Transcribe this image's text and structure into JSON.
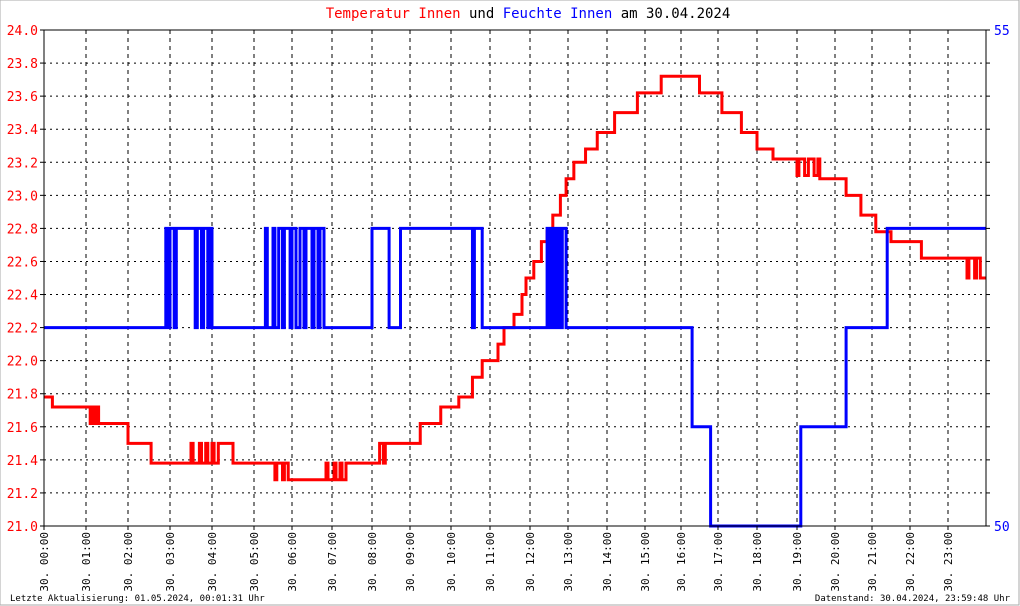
{
  "chart_data": {
    "type": "line",
    "title_parts": [
      {
        "text": "Temperatur Innen",
        "color": "#ff0000"
      },
      {
        "text": " und ",
        "color": "#000000"
      },
      {
        "text": "Feuchte Innen",
        "color": "#0000ff"
      },
      {
        "text": " am 30.04.2024",
        "color": "#000000"
      }
    ],
    "y_left": {
      "min": 21.0,
      "max": 24.0,
      "step": 0.2,
      "color": "#ff0000",
      "tick_labels": [
        "21.0",
        "21.2",
        "21.4",
        "21.6",
        "21.8",
        "22.0",
        "22.2",
        "22.4",
        "22.6",
        "22.8",
        "23.0",
        "23.2",
        "23.4",
        "23.6",
        "23.8",
        "24.0"
      ]
    },
    "y_right": {
      "min": 50,
      "max": 55,
      "color": "#0000ff",
      "tick_labels": [
        "50",
        "55"
      ]
    },
    "x": {
      "unit": "hour",
      "min": 0,
      "max": 24,
      "tick_labels": [
        "30. 00:00",
        "30. 01:00",
        "30. 02:00",
        "30. 03:00",
        "30. 04:00",
        "30. 05:00",
        "30. 06:00",
        "30. 07:00",
        "30. 08:00",
        "30. 09:00",
        "30. 10:00",
        "30. 11:00",
        "30. 12:00",
        "30. 13:00",
        "30. 14:00",
        "30. 15:00",
        "30. 16:00",
        "30. 17:00",
        "30. 18:00",
        "30. 19:00",
        "30. 20:00",
        "30. 21:00",
        "30. 22:00",
        "30. 23:00"
      ]
    },
    "grid": true,
    "series": [
      {
        "name": "Temperatur Innen",
        "axis": "left",
        "color": "#ff0000",
        "step": true,
        "points": [
          [
            0,
            21.78
          ],
          [
            0.2,
            21.72
          ],
          [
            1.1,
            21.62
          ],
          [
            1.15,
            21.72
          ],
          [
            1.2,
            21.62
          ],
          [
            1.25,
            21.72
          ],
          [
            1.3,
            21.62
          ],
          [
            2.0,
            21.5
          ],
          [
            2.55,
            21.38
          ],
          [
            3.5,
            21.5
          ],
          [
            3.55,
            21.38
          ],
          [
            3.7,
            21.5
          ],
          [
            3.75,
            21.38
          ],
          [
            3.85,
            21.5
          ],
          [
            3.9,
            21.38
          ],
          [
            4.0,
            21.5
          ],
          [
            4.05,
            21.38
          ],
          [
            4.15,
            21.5
          ],
          [
            4.5,
            21.38
          ],
          [
            5.55,
            21.28
          ],
          [
            5.6,
            21.38
          ],
          [
            5.75,
            21.28
          ],
          [
            5.8,
            21.38
          ],
          [
            5.9,
            21.28
          ],
          [
            6.85,
            21.38
          ],
          [
            6.9,
            21.28
          ],
          [
            7.05,
            21.38
          ],
          [
            7.1,
            21.28
          ],
          [
            7.2,
            21.38
          ],
          [
            7.25,
            21.28
          ],
          [
            7.35,
            21.38
          ],
          [
            8.2,
            21.5
          ],
          [
            8.3,
            21.38
          ],
          [
            8.35,
            21.5
          ],
          [
            9.25,
            21.62
          ],
          [
            9.75,
            21.72
          ],
          [
            10.2,
            21.78
          ],
          [
            10.55,
            21.9
          ],
          [
            10.8,
            22.0
          ],
          [
            11.2,
            22.1
          ],
          [
            11.35,
            22.2
          ],
          [
            11.6,
            22.28
          ],
          [
            11.8,
            22.4
          ],
          [
            11.9,
            22.5
          ],
          [
            12.1,
            22.6
          ],
          [
            12.3,
            22.72
          ],
          [
            12.45,
            22.78
          ],
          [
            12.6,
            22.88
          ],
          [
            12.8,
            23.0
          ],
          [
            12.95,
            23.1
          ],
          [
            13.15,
            23.2
          ],
          [
            13.45,
            23.28
          ],
          [
            13.75,
            23.38
          ],
          [
            14.2,
            23.5
          ],
          [
            14.8,
            23.62
          ],
          [
            15.45,
            23.72
          ],
          [
            16.5,
            23.62
          ],
          [
            17.1,
            23.5
          ],
          [
            17.6,
            23.38
          ],
          [
            18.0,
            23.28
          ],
          [
            18.4,
            23.22
          ],
          [
            19.0,
            23.12
          ],
          [
            19.05,
            23.22
          ],
          [
            19.2,
            23.12
          ],
          [
            19.3,
            23.22
          ],
          [
            19.45,
            23.12
          ],
          [
            19.55,
            23.22
          ],
          [
            19.6,
            23.1
          ],
          [
            20.3,
            23.0
          ],
          [
            20.7,
            22.88
          ],
          [
            21.1,
            22.78
          ],
          [
            21.5,
            22.72
          ],
          [
            22.3,
            22.62
          ],
          [
            23.5,
            22.5
          ],
          [
            23.55,
            22.62
          ],
          [
            23.7,
            22.5
          ],
          [
            23.75,
            22.62
          ],
          [
            23.85,
            22.5
          ],
          [
            24,
            22.5
          ]
        ]
      },
      {
        "name": "Feuchte Innen",
        "axis": "right",
        "color": "#0000ff",
        "step": true,
        "points": [
          [
            0,
            52
          ],
          [
            2.9,
            53
          ],
          [
            2.95,
            52
          ],
          [
            3.0,
            53
          ],
          [
            3.1,
            52
          ],
          [
            3.15,
            53
          ],
          [
            3.6,
            52
          ],
          [
            3.65,
            53
          ],
          [
            3.75,
            52
          ],
          [
            3.8,
            53
          ],
          [
            3.9,
            52
          ],
          [
            3.95,
            53
          ],
          [
            4.0,
            52
          ],
          [
            5.3,
            53
          ],
          [
            5.35,
            52
          ],
          [
            5.5,
            53
          ],
          [
            5.55,
            52
          ],
          [
            5.65,
            53
          ],
          [
            5.75,
            52
          ],
          [
            5.8,
            53
          ],
          [
            5.95,
            52
          ],
          [
            6.0,
            53
          ],
          [
            6.1,
            52
          ],
          [
            6.2,
            53
          ],
          [
            6.3,
            52
          ],
          [
            6.35,
            53
          ],
          [
            6.5,
            52
          ],
          [
            6.55,
            53
          ],
          [
            6.65,
            52
          ],
          [
            6.7,
            53
          ],
          [
            6.8,
            52
          ],
          [
            8.0,
            53
          ],
          [
            8.45,
            52
          ],
          [
            8.75,
            53
          ],
          [
            10.55,
            52
          ],
          [
            10.6,
            53
          ],
          [
            10.8,
            52
          ],
          [
            12.45,
            53
          ],
          [
            12.5,
            52
          ],
          [
            12.55,
            53
          ],
          [
            12.6,
            52
          ],
          [
            12.65,
            53
          ],
          [
            12.7,
            52
          ],
          [
            12.75,
            53
          ],
          [
            12.8,
            52
          ],
          [
            12.85,
            53
          ],
          [
            12.95,
            52
          ],
          [
            16.3,
            51
          ],
          [
            16.8,
            50
          ],
          [
            19.1,
            51
          ],
          [
            20.3,
            52
          ],
          [
            21.4,
            53
          ],
          [
            24,
            53
          ]
        ]
      }
    ]
  },
  "footer": {
    "left": "Letzte Aktualisierung: 01.05.2024, 00:01:31 Uhr",
    "right": "Datenstand: 30.04.2024, 23:59:48 Uhr"
  }
}
